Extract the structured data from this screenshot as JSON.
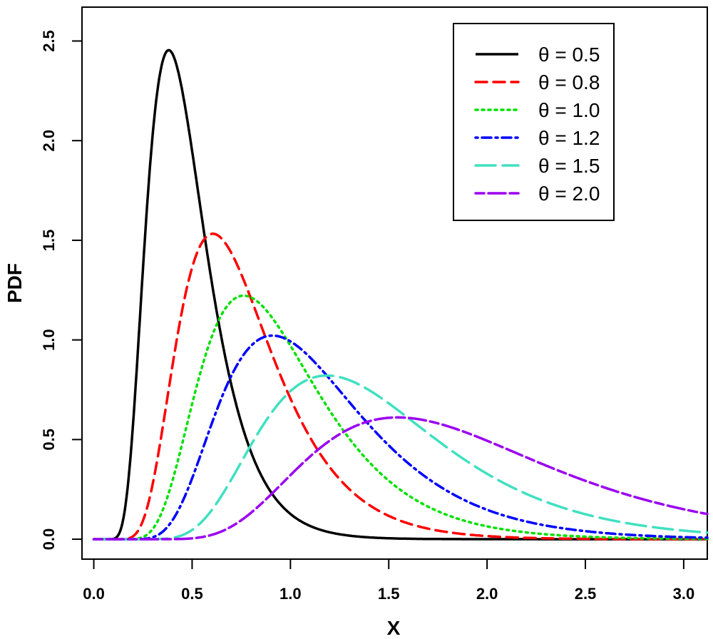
{
  "chart_data": {
    "type": "line",
    "title": "",
    "xlabel": "X",
    "ylabel": "PDF",
    "xlim": [
      -0.06,
      3.12
    ],
    "ylim": [
      -0.1,
      2.67
    ],
    "xticks": [
      "0.0",
      "0.5",
      "1.0",
      "1.5",
      "2.0",
      "2.5",
      "3.0"
    ],
    "yticks": [
      "0.0",
      "0.5",
      "1.0",
      "1.5",
      "2.0",
      "2.5"
    ],
    "legend_position": "top-right",
    "series": [
      {
        "name": "θ = 0.5",
        "theta": 0.5,
        "color": "#000000",
        "style": "solid",
        "peak": [
          0.39,
          2.45
        ]
      },
      {
        "name": "θ = 0.8",
        "theta": 0.8,
        "color": "#ff0000",
        "style": "dashed",
        "peak": [
          0.62,
          1.53
        ]
      },
      {
        "name": "θ = 1.0",
        "theta": 1.0,
        "color": "#00e000",
        "style": "dotted",
        "peak": [
          0.78,
          1.22
        ]
      },
      {
        "name": "θ = 1.2",
        "theta": 1.2,
        "color": "#0000ff",
        "style": "dotdash",
        "peak": [
          0.93,
          1.02
        ]
      },
      {
        "name": "θ = 1.5",
        "theta": 1.5,
        "color": "#40e0c0",
        "style": "longdash",
        "peak": [
          1.21,
          0.82
        ]
      },
      {
        "name": "θ = 2.0",
        "theta": 2.0,
        "color": "#9b00f0",
        "style": "twodash",
        "peak": [
          1.58,
          0.61
        ]
      }
    ]
  }
}
